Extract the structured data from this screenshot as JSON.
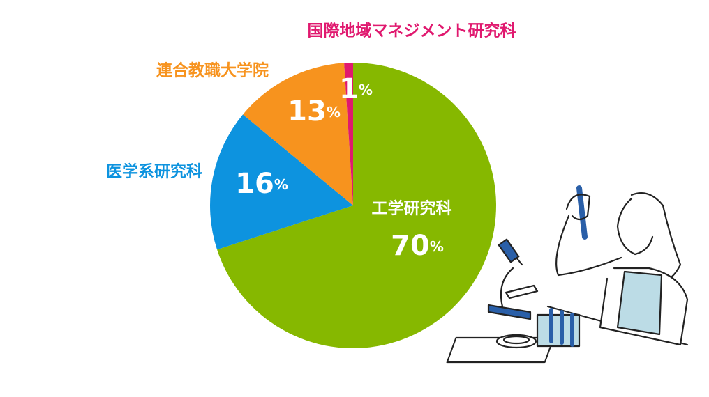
{
  "chart_data": {
    "type": "pie",
    "categories": [
      "工学研究科",
      "医学系研究科",
      "連合教職大学院",
      "国際地域マネジメント研究科"
    ],
    "values": [
      70,
      16,
      13,
      1
    ],
    "unit": "%",
    "colors": [
      "#86b800",
      "#0d93df",
      "#f7931e",
      "#e0196f"
    ]
  }
}
